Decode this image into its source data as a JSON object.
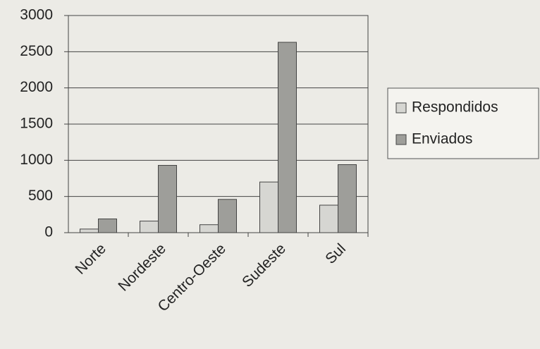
{
  "chart_data": {
    "type": "bar",
    "categories": [
      "Norte",
      "Nordeste",
      "Centro-Oeste",
      "Sudeste",
      "Sul"
    ],
    "series": [
      {
        "name": "Respondidos",
        "color": "#d6d6d2",
        "values": [
          50,
          160,
          110,
          700,
          380
        ]
      },
      {
        "name": "Enviados",
        "color": "#9e9e9a",
        "values": [
          190,
          930,
          460,
          2630,
          940
        ]
      }
    ],
    "ylim": [
      0,
      3000
    ],
    "yticks": [
      0,
      500,
      1000,
      1500,
      2000,
      2500,
      3000
    ],
    "grid": true,
    "legend": "right"
  }
}
